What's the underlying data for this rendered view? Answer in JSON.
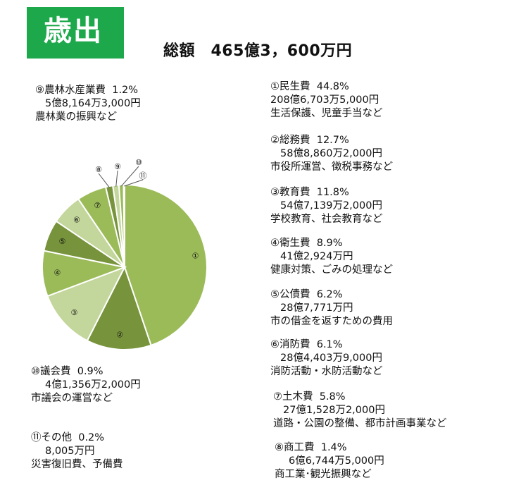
{
  "header": {
    "title": "歳出",
    "total": "総額　465億3，600万円"
  },
  "chart_data": {
    "type": "pie",
    "title": "歳出",
    "total_label": "総額　465億3，600万円",
    "slices": [
      {
        "marker": "①",
        "name": "民生費",
        "percent_label": "44.8%",
        "value": 44.8,
        "amount": "208億6,703万5,000円",
        "desc": "生活保護、児童手当など",
        "color": "#9bbb59"
      },
      {
        "marker": "②",
        "name": "総務費",
        "percent_label": "12.7%",
        "value": 12.7,
        "amount": "58億8,860万2,000円",
        "desc": "市役所運営、徴税事務など",
        "color": "#77933c"
      },
      {
        "marker": "③",
        "name": "教育費",
        "percent_label": "11.8%",
        "value": 11.8,
        "amount": "54億7,139万2,000円",
        "desc": "学校教育、社会教育など",
        "color": "#c3d69b"
      },
      {
        "marker": "④",
        "name": "衛生費",
        "percent_label": "8.9%",
        "value": 8.9,
        "amount": "41億2,924万円",
        "desc": "健康対策、ごみの処理など",
        "color": "#9bbb59"
      },
      {
        "marker": "⑤",
        "name": "公債費",
        "percent_label": "6.2%",
        "value": 6.2,
        "amount": "28億7,771万円",
        "desc": "市の借金を返すための費用",
        "color": "#77933c"
      },
      {
        "marker": "⑥",
        "name": "消防費",
        "percent_label": "6.1%",
        "value": 6.1,
        "amount": "28億4,403万9,000円",
        "desc": "消防活動・水防活動など",
        "color": "#c3d69b"
      },
      {
        "marker": "⑦",
        "name": "土木費",
        "percent_label": "5.8%",
        "value": 5.8,
        "amount": "27億1,528万2,000円",
        "desc": "道路・公園の整備、都市計画事業など",
        "color": "#9bbb59"
      },
      {
        "marker": "⑧",
        "name": "商工費",
        "percent_label": "1.4%",
        "value": 1.4,
        "amount": "6億6,744万5,000円",
        "desc": "商工業･観光振興など",
        "color": "#77933c"
      },
      {
        "marker": "⑨",
        "name": "農林水産業費",
        "percent_label": "1.2%",
        "value": 1.2,
        "amount": "5億8,164万3,000円",
        "desc": "農林業の振興など",
        "color": "#c3d69b"
      },
      {
        "marker": "⑩",
        "name": "議会費",
        "percent_label": "0.9%",
        "value": 0.9,
        "amount": "4億1,356万2,000円",
        "desc": "市議会の運営など",
        "color": "#9bbb59"
      },
      {
        "marker": "⑪",
        "name": "その他",
        "percent_label": "0.2%",
        "value": 0.2,
        "amount": "8,005万円",
        "desc": "災害復旧費、予備費",
        "color": "#77933c"
      }
    ]
  }
}
